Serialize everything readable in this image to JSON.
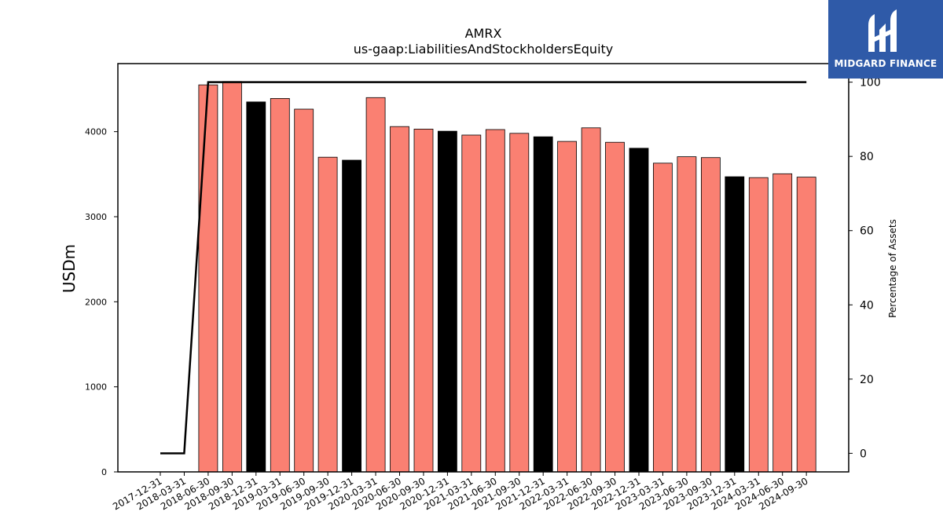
{
  "brand": {
    "name": "MIDGARD FINANCE",
    "background": "#2f5aa8"
  },
  "chart_data": {
    "type": "bar",
    "title": "AMRX",
    "subtitle": "us-gaap:LiabilitiesAndStockholdersEquity",
    "ylabel": "USDm",
    "y2label": "Percentage of Assets",
    "ylim": [
      0,
      4800
    ],
    "y2lim": [
      -5,
      105
    ],
    "yticks": [
      0,
      1000,
      2000,
      3000,
      4000
    ],
    "y2ticks": [
      0,
      20,
      40,
      60,
      80,
      100
    ],
    "colors": {
      "quarter": "#fa8072",
      "year_end": "#000000",
      "line": "#000000"
    },
    "categories": [
      "2017-12-31",
      "2018-03-31",
      "2018-06-30",
      "2018-09-30",
      "2018-12-31",
      "2019-03-31",
      "2019-06-30",
      "2019-09-30",
      "2019-12-31",
      "2020-03-31",
      "2020-06-30",
      "2020-09-30",
      "2020-12-31",
      "2021-03-31",
      "2021-06-30",
      "2021-09-30",
      "2021-12-31",
      "2022-03-31",
      "2022-06-30",
      "2022-09-30",
      "2022-12-31",
      "2023-03-31",
      "2023-06-30",
      "2023-09-30",
      "2023-12-31",
      "2024-03-31",
      "2024-06-30",
      "2024-09-30"
    ],
    "series": [
      {
        "type": "bar",
        "values": [
          null,
          null,
          4550,
          4590,
          4350,
          4390,
          4265,
          3700,
          3665,
          4400,
          4060,
          4030,
          4005,
          3960,
          4025,
          3980,
          3940,
          3885,
          4045,
          3875,
          3805,
          3630,
          3705,
          3695,
          3470,
          3460,
          3505,
          3465
        ],
        "year_end": [
          false,
          false,
          false,
          false,
          true,
          false,
          false,
          false,
          true,
          false,
          false,
          false,
          true,
          false,
          false,
          false,
          true,
          false,
          false,
          false,
          true,
          false,
          false,
          false,
          true,
          false,
          false,
          false
        ]
      },
      {
        "type": "line",
        "axis": "right",
        "values": [
          0,
          0,
          100,
          100,
          100,
          100,
          100,
          100,
          100,
          100,
          100,
          100,
          100,
          100,
          100,
          100,
          100,
          100,
          100,
          100,
          100,
          100,
          100,
          100,
          100,
          100,
          100,
          100
        ]
      }
    ],
    "grid": false,
    "legend": "none"
  }
}
